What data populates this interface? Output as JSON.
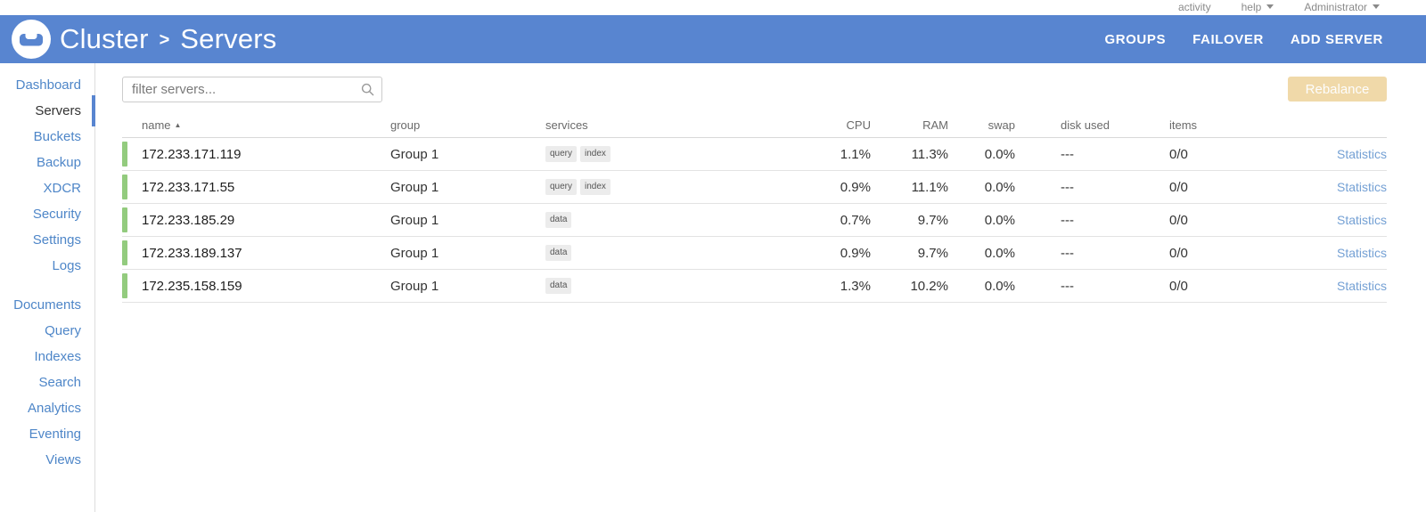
{
  "topbar": {
    "activity_label": "activity",
    "help_label": "help",
    "user_label": "Administrator"
  },
  "header": {
    "breadcrumb_parent": "Cluster",
    "breadcrumb_separator": ">",
    "page_title": "Servers",
    "actions": {
      "groups_label": "GROUPS",
      "failover_label": "FAILOVER",
      "add_server_label": "ADD SERVER"
    }
  },
  "sidebar": {
    "groups": [
      {
        "items": [
          {
            "label": "Dashboard",
            "active": false
          },
          {
            "label": "Servers",
            "active": true
          },
          {
            "label": "Buckets",
            "active": false
          },
          {
            "label": "Backup",
            "active": false
          },
          {
            "label": "XDCR",
            "active": false
          },
          {
            "label": "Security",
            "active": false
          },
          {
            "label": "Settings",
            "active": false
          },
          {
            "label": "Logs",
            "active": false
          }
        ]
      },
      {
        "items": [
          {
            "label": "Documents",
            "active": false
          },
          {
            "label": "Query",
            "active": false
          },
          {
            "label": "Indexes",
            "active": false
          },
          {
            "label": "Search",
            "active": false
          },
          {
            "label": "Analytics",
            "active": false
          },
          {
            "label": "Eventing",
            "active": false
          },
          {
            "label": "Views",
            "active": false
          }
        ]
      }
    ]
  },
  "toolbar": {
    "filter_placeholder": "filter servers...",
    "rebalance_label": "Rebalance"
  },
  "table": {
    "columns": [
      "name",
      "group",
      "services",
      "CPU",
      "RAM",
      "swap",
      "disk used",
      "items"
    ],
    "sorted_column": "name",
    "sort_direction": "asc",
    "rows": [
      {
        "name": "172.233.171.119",
        "group": "Group 1",
        "services": [
          "query",
          "index"
        ],
        "cpu": "1.1%",
        "ram": "11.3%",
        "swap": "0.0%",
        "disk_used": "---",
        "items": "0/0",
        "action": "Statistics"
      },
      {
        "name": "172.233.171.55",
        "group": "Group 1",
        "services": [
          "query",
          "index"
        ],
        "cpu": "0.9%",
        "ram": "11.1%",
        "swap": "0.0%",
        "disk_used": "---",
        "items": "0/0",
        "action": "Statistics"
      },
      {
        "name": "172.233.185.29",
        "group": "Group 1",
        "services": [
          "data"
        ],
        "cpu": "0.7%",
        "ram": "9.7%",
        "swap": "0.0%",
        "disk_used": "---",
        "items": "0/0",
        "action": "Statistics"
      },
      {
        "name": "172.233.189.137",
        "group": "Group 1",
        "services": [
          "data"
        ],
        "cpu": "0.9%",
        "ram": "9.7%",
        "swap": "0.0%",
        "disk_used": "---",
        "items": "0/0",
        "action": "Statistics"
      },
      {
        "name": "172.235.158.159",
        "group": "Group 1",
        "services": [
          "data"
        ],
        "cpu": "1.3%",
        "ram": "10.2%",
        "swap": "0.0%",
        "disk_used": "---",
        "items": "0/0",
        "action": "Statistics"
      }
    ]
  },
  "colors": {
    "header_blue": "#5885D0",
    "sidebar_link_blue": "#4E86C8",
    "active_indicator_blue": "#5885D0",
    "status_green": "#93CB7E",
    "rebalance_disabled": "#F0D9A9",
    "statistics_link": "#74A0D4"
  }
}
